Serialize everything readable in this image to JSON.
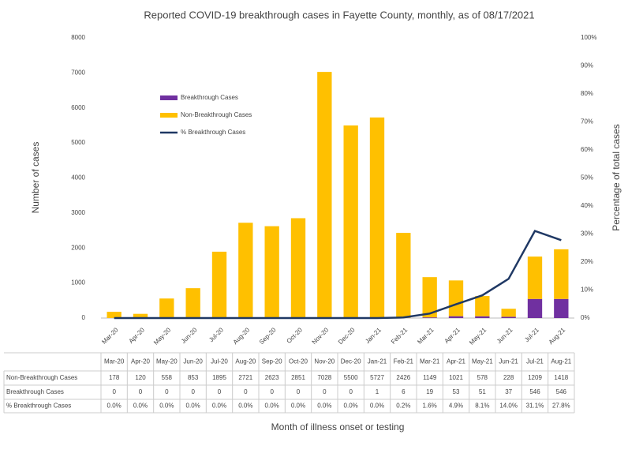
{
  "chart_data": {
    "type": "bar",
    "title": "Reported COVID-19 breakthrough cases in Fayette County, monthly, as of 08/17/2021",
    "x_label": "Month of illness onset or testing",
    "y_label": "Number of cases",
    "y2_label": "Percentage of total cases",
    "stacked": true,
    "legend": "left",
    "categories": [
      "Mar-20",
      "Apr-20",
      "May-20",
      "Jun-20",
      "Jul-20",
      "Aug-20",
      "Sep-20",
      "Oct-20",
      "Nov-20",
      "Dec-20",
      "Jan-21",
      "Feb-21",
      "Mar-21",
      "Apr-21",
      "May-21",
      "Jun-21",
      "Jul-21",
      "Aug-21"
    ],
    "series": [
      {
        "name": "Non-Breakthrough Cases",
        "color": "#ffc000",
        "values": [
          178,
          120,
          558,
          853,
          1895,
          2721,
          2623,
          2851,
          7028,
          5500,
          5727,
          2426,
          1149,
          1021,
          578,
          228,
          1209,
          1418
        ]
      },
      {
        "name": "Breakthrough Cases",
        "color": "#7030a0",
        "values": [
          0,
          0,
          0,
          0,
          0,
          0,
          0,
          0,
          0,
          0,
          1,
          6,
          19,
          53,
          51,
          37,
          546,
          546
        ]
      },
      {
        "name": "% Breakthrough Cases",
        "color": "#1f3864",
        "type": "line",
        "axis": "y2",
        "values": [
          0,
          0,
          0,
          0,
          0,
          0,
          0,
          0,
          0,
          0,
          0,
          0.2,
          1.6,
          4.9,
          8.1,
          14.0,
          31.1,
          27.8
        ],
        "value_labels": [
          "0.0%",
          "0.0%",
          "0.0%",
          "0.0%",
          "0.0%",
          "0.0%",
          "0.0%",
          "0.0%",
          "0.0%",
          "0.0%",
          "0.0%",
          "0.2%",
          "1.6%",
          "4.9%",
          "8.1%",
          "14.0%",
          "31.1%",
          "27.8%"
        ]
      }
    ],
    "ylim": [
      0,
      8000
    ],
    "yticks": [
      0,
      1000,
      2000,
      3000,
      4000,
      5000,
      6000,
      7000,
      8000
    ],
    "y2lim": [
      0,
      100
    ],
    "y2ticks": [
      {
        "value": 0,
        "label": "0%"
      },
      {
        "value": 10,
        "label": "10%"
      },
      {
        "value": 20,
        "label": "20%"
      },
      {
        "value": 30,
        "label": "30%"
      },
      {
        "value": 40,
        "label": "40%"
      },
      {
        "value": 50,
        "label": "50%"
      },
      {
        "value": 60,
        "label": "60%"
      },
      {
        "value": 70,
        "label": "70%"
      },
      {
        "value": 80,
        "label": "80%"
      },
      {
        "value": 90,
        "label": "90%"
      },
      {
        "value": 100,
        "label": "100%"
      }
    ]
  }
}
